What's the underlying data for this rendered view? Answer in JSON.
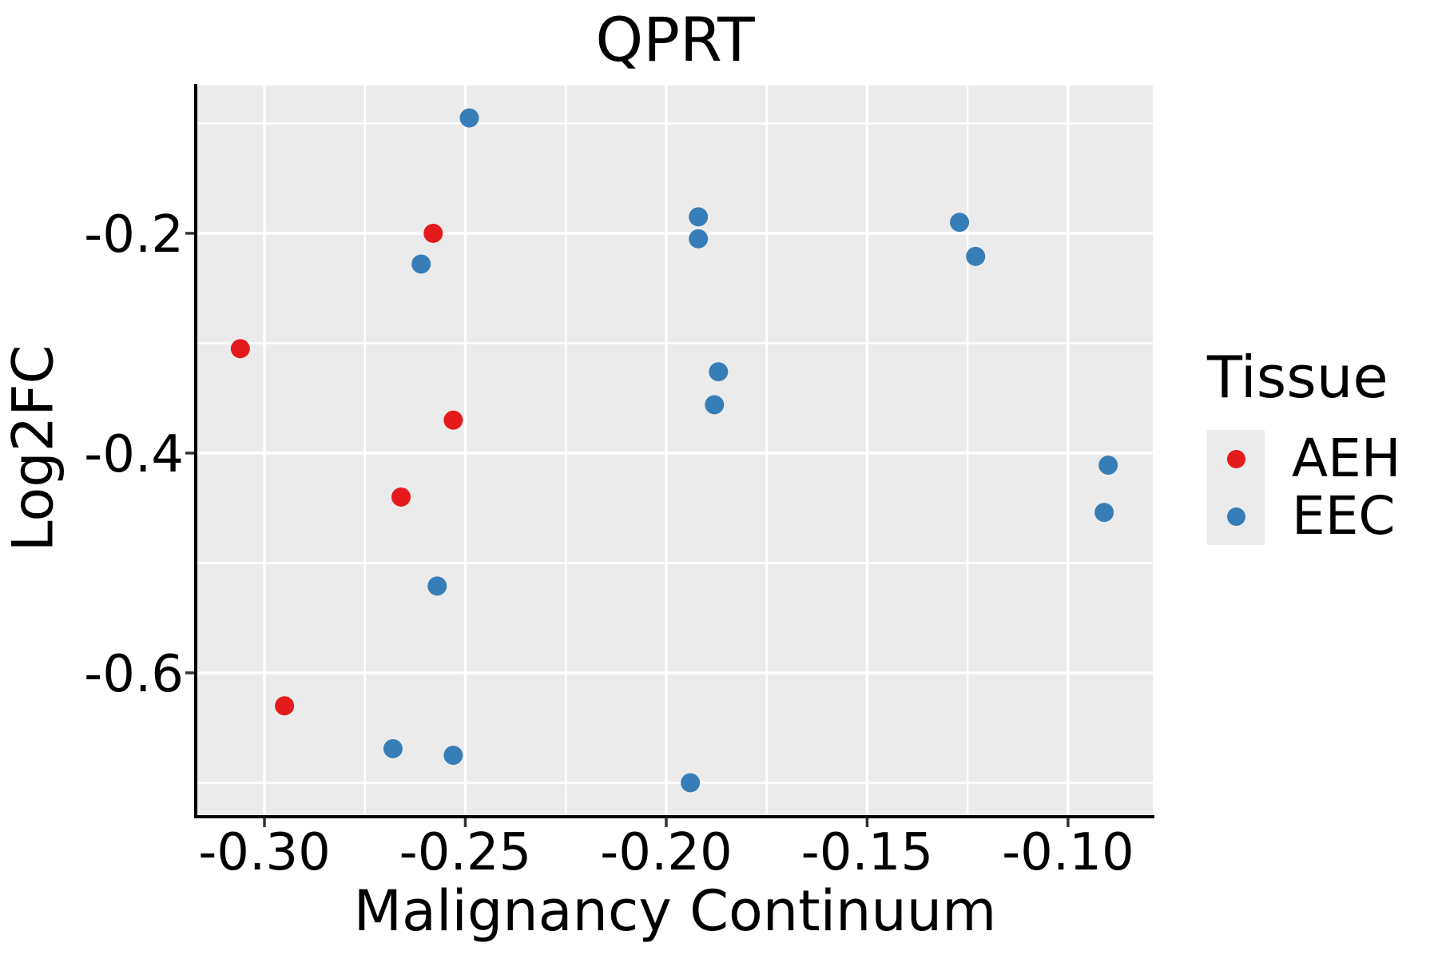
{
  "chart_data": {
    "type": "scatter",
    "title": "QPRT",
    "xlabel": "Malignancy Continuum",
    "ylabel": "Log2FC",
    "xlim": [
      -0.3167,
      -0.0789
    ],
    "ylim": [
      -0.7295,
      -0.0655
    ],
    "x_ticks": [
      -0.3,
      -0.25,
      -0.2,
      -0.15,
      -0.1
    ],
    "x_tick_labels": [
      "-0.30",
      "-0.25",
      "-0.20",
      "-0.15",
      "-0.10"
    ],
    "y_ticks": [
      -0.2,
      -0.4,
      -0.6
    ],
    "y_tick_labels": [
      "-0.2",
      "-0.4",
      "-0.6"
    ],
    "x_minor_ticks": [
      -0.275,
      -0.225,
      -0.175,
      -0.125
    ],
    "y_minor_ticks": [
      -0.1,
      -0.3,
      -0.5,
      -0.7
    ],
    "grid": true,
    "legend": {
      "title": "Tissue",
      "position": "right"
    },
    "colors": {
      "panel_background": "#EBEBEB",
      "grid": "#FFFFFF",
      "axis_line": "#000000",
      "tick_mark": "#333333",
      "text": "#000000",
      "AEH": "#E41A1C",
      "EEC": "#377EB8"
    },
    "series": [
      {
        "name": "AEH",
        "color": "#E41A1C",
        "points": [
          [
            -0.306,
            -0.305
          ],
          [
            -0.295,
            -0.63
          ],
          [
            -0.266,
            -0.44
          ],
          [
            -0.258,
            -0.2
          ],
          [
            -0.253,
            -0.37
          ]
        ]
      },
      {
        "name": "EEC",
        "color": "#377EB8",
        "points": [
          [
            -0.268,
            -0.669
          ],
          [
            -0.261,
            -0.228
          ],
          [
            -0.257,
            -0.521
          ],
          [
            -0.253,
            -0.675
          ],
          [
            -0.249,
            -0.095
          ],
          [
            -0.194,
            -0.7
          ],
          [
            -0.192,
            -0.185
          ],
          [
            -0.192,
            -0.205
          ],
          [
            -0.188,
            -0.356
          ],
          [
            -0.187,
            -0.326
          ],
          [
            -0.127,
            -0.19
          ],
          [
            -0.123,
            -0.221
          ],
          [
            -0.091,
            -0.454
          ],
          [
            -0.09,
            -0.411
          ]
        ]
      }
    ]
  }
}
